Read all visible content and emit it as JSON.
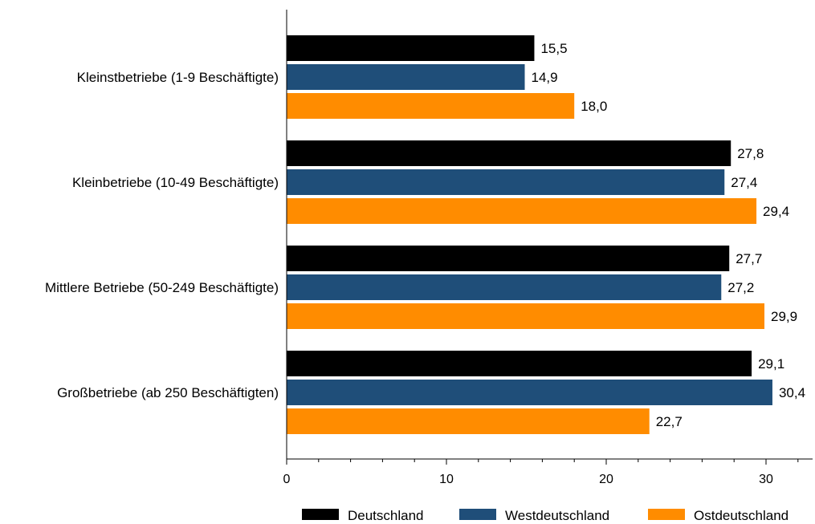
{
  "chart_data": {
    "type": "bar",
    "orientation": "horizontal",
    "categories": [
      "Kleinstbetriebe (1-9 Beschäftigte)",
      "Kleinbetriebe (10-49 Beschäftigte)",
      "Mittlere Betriebe (50-249 Beschäftigte)",
      "Großbetriebe (ab 250 Beschäftigten)"
    ],
    "series": [
      {
        "name": "Deutschland",
        "color": "#000000",
        "values": [
          15.5,
          27.8,
          27.7,
          29.1
        ],
        "labels": [
          "15,5",
          "27,8",
          "27,7",
          "29,1"
        ]
      },
      {
        "name": "Westdeutschland",
        "color": "#1f4e79",
        "values": [
          14.9,
          27.4,
          27.2,
          30.4
        ],
        "labels": [
          "14,9",
          "27,4",
          "27,2",
          "30,4"
        ]
      },
      {
        "name": "Ostdeutschland",
        "color": "#ff8c00",
        "values": [
          18.0,
          29.4,
          29.9,
          22.7
        ],
        "labels": [
          "18,0",
          "29,4",
          "29,9",
          "22,7"
        ]
      }
    ],
    "xlim": [
      0,
      33
    ],
    "xticks": [
      0,
      10,
      20,
      30
    ],
    "xtick_labels": [
      "0",
      "10",
      "20",
      "30"
    ],
    "grid": false,
    "legend_position": "bottom"
  }
}
